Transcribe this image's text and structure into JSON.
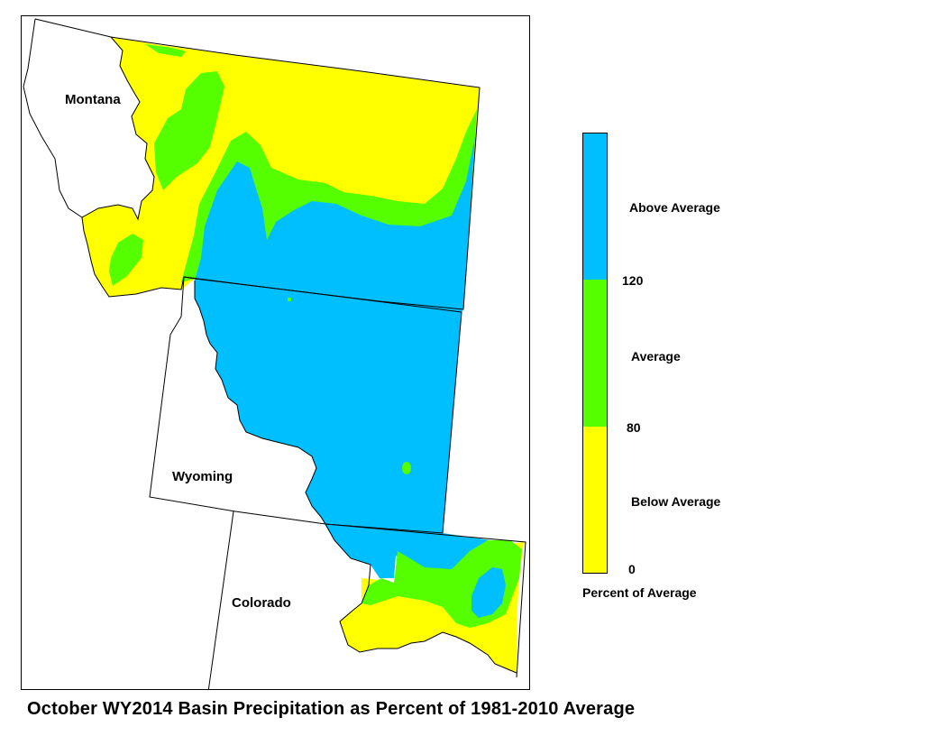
{
  "map": {
    "states": [
      {
        "key": "montana",
        "label": "Montana"
      },
      {
        "key": "wyoming",
        "label": "Wyoming"
      },
      {
        "key": "colorado",
        "label": "Colorado"
      }
    ],
    "fill_colors": {
      "above": "#00BFFF",
      "average": "#55FF00",
      "below": "#FFFF00",
      "outline": "#000000",
      "background": "#FFFFFF"
    }
  },
  "legend": {
    "classes": [
      {
        "key": "above",
        "label": "Above Average",
        "color": "#00BFFF"
      },
      {
        "key": "average",
        "label": "Average",
        "color": "#55FF00"
      },
      {
        "key": "below",
        "label": "Below Average",
        "color": "#FFFF00"
      }
    ],
    "breaks": {
      "high": "120",
      "mid": "80",
      "low": "0"
    },
    "title": "Percent of Average"
  },
  "caption": "October WY2014 Basin Precipitation as Percent of 1981-2010 Average"
}
